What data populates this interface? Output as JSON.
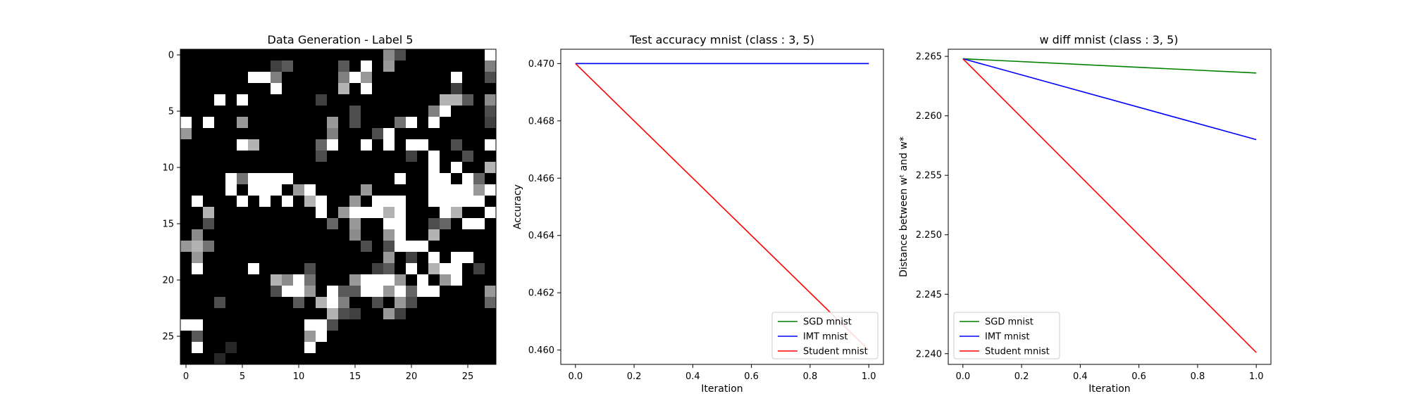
{
  "chart_data": [
    {
      "type": "heatmap",
      "title": "Data Generation - Label 5",
      "colormap": "gray",
      "xticks": [
        0,
        5,
        10,
        15,
        20,
        25
      ],
      "yticks": [
        0,
        5,
        10,
        15,
        20,
        25
      ],
      "shape": [
        28,
        28
      ],
      "white_threshold": 0.72,
      "bright_cells": [
        [
          0,
          18,
          0.55
        ],
        [
          0,
          19,
          0.3
        ],
        [
          0,
          27,
          0.9
        ],
        [
          1,
          8,
          0.25
        ],
        [
          1,
          9,
          0.35
        ],
        [
          1,
          14,
          0.35
        ],
        [
          1,
          16,
          0.9
        ],
        [
          1,
          18,
          0.6
        ],
        [
          1,
          27,
          0.5
        ],
        [
          2,
          6,
          0.9
        ],
        [
          2,
          7,
          0.9
        ],
        [
          2,
          8,
          0.5
        ],
        [
          2,
          14,
          0.5
        ],
        [
          2,
          15,
          0.8
        ],
        [
          2,
          16,
          0.6
        ],
        [
          2,
          24,
          0.9
        ],
        [
          2,
          27,
          0.3
        ],
        [
          3,
          8,
          0.9
        ],
        [
          3,
          14,
          0.7
        ],
        [
          3,
          16,
          0.9
        ],
        [
          3,
          24,
          0.25
        ],
        [
          4,
          3,
          0.9
        ],
        [
          4,
          5,
          0.9
        ],
        [
          4,
          12,
          0.25
        ],
        [
          4,
          23,
          0.7
        ],
        [
          4,
          24,
          0.7
        ],
        [
          4,
          25,
          0.35
        ],
        [
          4,
          27,
          0.55
        ],
        [
          5,
          15,
          0.3
        ],
        [
          5,
          22,
          0.5
        ],
        [
          5,
          23,
          0.9
        ],
        [
          5,
          27,
          0.3
        ],
        [
          6,
          0,
          0.9
        ],
        [
          6,
          2,
          0.9
        ],
        [
          6,
          5,
          0.6
        ],
        [
          6,
          13,
          0.6
        ],
        [
          6,
          15,
          0.3
        ],
        [
          6,
          19,
          0.45
        ],
        [
          6,
          20,
          0.9
        ],
        [
          6,
          22,
          0.9
        ],
        [
          6,
          27,
          0.25
        ],
        [
          7,
          0,
          0.6
        ],
        [
          7,
          13,
          0.5
        ],
        [
          7,
          17,
          0.3
        ],
        [
          7,
          18,
          0.9
        ],
        [
          8,
          5,
          0.9
        ],
        [
          8,
          6,
          0.7
        ],
        [
          8,
          12,
          0.4
        ],
        [
          8,
          13,
          0.9
        ],
        [
          8,
          16,
          0.9
        ],
        [
          8,
          18,
          0.9
        ],
        [
          8,
          20,
          0.9
        ],
        [
          8,
          21,
          0.9
        ],
        [
          8,
          24,
          0.3
        ],
        [
          8,
          27,
          0.9
        ],
        [
          9,
          12,
          0.3
        ],
        [
          9,
          20,
          0.25
        ],
        [
          9,
          22,
          0.9
        ],
        [
          9,
          25,
          0.3
        ],
        [
          10,
          22,
          0.9
        ],
        [
          10,
          24,
          0.9
        ],
        [
          10,
          27,
          0.7
        ],
        [
          11,
          4,
          0.9
        ],
        [
          11,
          5,
          0.45
        ],
        [
          11,
          6,
          0.9
        ],
        [
          11,
          7,
          0.9
        ],
        [
          11,
          8,
          0.9
        ],
        [
          11,
          9,
          0.9
        ],
        [
          11,
          19,
          0.8
        ],
        [
          11,
          22,
          0.9
        ],
        [
          11,
          23,
          0.9
        ],
        [
          11,
          25,
          0.9
        ],
        [
          11,
          26,
          0.4
        ],
        [
          12,
          4,
          0.9
        ],
        [
          12,
          6,
          0.9
        ],
        [
          12,
          7,
          0.9
        ],
        [
          12,
          8,
          0.9
        ],
        [
          12,
          10,
          0.6
        ],
        [
          12,
          11,
          0.9
        ],
        [
          12,
          16,
          0.6
        ],
        [
          12,
          22,
          0.9
        ],
        [
          12,
          23,
          0.9
        ],
        [
          12,
          24,
          0.9
        ],
        [
          12,
          25,
          0.9
        ],
        [
          12,
          26,
          0.6
        ],
        [
          12,
          27,
          0.9
        ],
        [
          13,
          1,
          0.9
        ],
        [
          13,
          5,
          0.9
        ],
        [
          13,
          7,
          0.9
        ],
        [
          13,
          9,
          0.9
        ],
        [
          13,
          11,
          0.7
        ],
        [
          13,
          12,
          0.9
        ],
        [
          13,
          15,
          0.6
        ],
        [
          13,
          17,
          0.9
        ],
        [
          13,
          18,
          0.9
        ],
        [
          13,
          19,
          0.9
        ],
        [
          13,
          22,
          0.9
        ],
        [
          13,
          23,
          0.9
        ],
        [
          13,
          24,
          0.8
        ],
        [
          13,
          25,
          0.9
        ],
        [
          13,
          26,
          0.9
        ],
        [
          14,
          2,
          0.7
        ],
        [
          14,
          12,
          0.9
        ],
        [
          14,
          14,
          0.6
        ],
        [
          14,
          15,
          0.9
        ],
        [
          14,
          16,
          0.9
        ],
        [
          14,
          17,
          0.9
        ],
        [
          14,
          18,
          0.7
        ],
        [
          14,
          19,
          0.75
        ],
        [
          14,
          23,
          0.9
        ],
        [
          14,
          24,
          0.7
        ],
        [
          14,
          27,
          0.9
        ],
        [
          15,
          2,
          0.3
        ],
        [
          15,
          13,
          0.4
        ],
        [
          15,
          15,
          0.6
        ],
        [
          15,
          18,
          0.75
        ],
        [
          15,
          19,
          0.9
        ],
        [
          15,
          22,
          0.3
        ],
        [
          15,
          23,
          0.4
        ],
        [
          15,
          25,
          0.9
        ],
        [
          15,
          26,
          0.9
        ],
        [
          16,
          1,
          0.55
        ],
        [
          16,
          15,
          0.55
        ],
        [
          16,
          18,
          0.6
        ],
        [
          16,
          19,
          0.9
        ],
        [
          16,
          22,
          0.7
        ],
        [
          17,
          0,
          0.6
        ],
        [
          17,
          1,
          0.7
        ],
        [
          17,
          2,
          0.45
        ],
        [
          17,
          16,
          0.3
        ],
        [
          17,
          18,
          0.3
        ],
        [
          17,
          19,
          0.9
        ],
        [
          17,
          20,
          0.9
        ],
        [
          17,
          21,
          0.9
        ],
        [
          18,
          1,
          0.6
        ],
        [
          18,
          18,
          0.6
        ],
        [
          18,
          20,
          0.25
        ],
        [
          18,
          22,
          0.9
        ],
        [
          18,
          24,
          0.9
        ],
        [
          18,
          25,
          0.9
        ],
        [
          19,
          1,
          0.9
        ],
        [
          19,
          6,
          0.9
        ],
        [
          19,
          11,
          0.3
        ],
        [
          19,
          17,
          0.25
        ],
        [
          19,
          18,
          0.35
        ],
        [
          19,
          20,
          0.8
        ],
        [
          19,
          22,
          0.7
        ],
        [
          19,
          23,
          0.8
        ],
        [
          19,
          24,
          0.9
        ],
        [
          19,
          26,
          0.25
        ],
        [
          20,
          8,
          0.7
        ],
        [
          20,
          9,
          0.55
        ],
        [
          20,
          10,
          0.8
        ],
        [
          20,
          11,
          0.45
        ],
        [
          20,
          15,
          0.6
        ],
        [
          20,
          16,
          0.9
        ],
        [
          20,
          17,
          0.9
        ],
        [
          20,
          18,
          0.9
        ],
        [
          20,
          19,
          0.6
        ],
        [
          20,
          21,
          0.8
        ],
        [
          20,
          23,
          0.6
        ],
        [
          20,
          24,
          0.9
        ],
        [
          21,
          8,
          0.3
        ],
        [
          21,
          9,
          0.9
        ],
        [
          21,
          10,
          0.9
        ],
        [
          21,
          11,
          0.6
        ],
        [
          21,
          13,
          0.9
        ],
        [
          21,
          14,
          0.35
        ],
        [
          21,
          15,
          0.35
        ],
        [
          21,
          16,
          0.9
        ],
        [
          21,
          17,
          0.9
        ],
        [
          21,
          18,
          0.6
        ],
        [
          21,
          19,
          0.8
        ],
        [
          21,
          20,
          0.4
        ],
        [
          21,
          21,
          0.9
        ],
        [
          21,
          22,
          0.9
        ],
        [
          21,
          27,
          0.6
        ],
        [
          22,
          3,
          0.3
        ],
        [
          22,
          10,
          0.35
        ],
        [
          22,
          12,
          0.7
        ],
        [
          22,
          13,
          0.9
        ],
        [
          22,
          14,
          0.5
        ],
        [
          22,
          17,
          0.3
        ],
        [
          22,
          19,
          0.6
        ],
        [
          22,
          20,
          0.3
        ],
        [
          22,
          27,
          0.4
        ],
        [
          23,
          13,
          0.7
        ],
        [
          23,
          14,
          0.3
        ],
        [
          23,
          15,
          0.25
        ],
        [
          23,
          18,
          0.6
        ],
        [
          23,
          19,
          0.25
        ],
        [
          24,
          0,
          0.9
        ],
        [
          24,
          1,
          0.9
        ],
        [
          24,
          11,
          0.9
        ],
        [
          24,
          12,
          0.9
        ],
        [
          24,
          13,
          0.3
        ],
        [
          25,
          1,
          0.35
        ],
        [
          25,
          11,
          0.6
        ],
        [
          25,
          12,
          0.9
        ],
        [
          26,
          1,
          0.9
        ],
        [
          26,
          11,
          0.9
        ],
        [
          26,
          4,
          0.15
        ],
        [
          27,
          3,
          0.15
        ]
      ]
    },
    {
      "type": "line",
      "title": "Test accuracy mnist (class : 3, 5)",
      "xlabel": "Iteration",
      "ylabel": "Accuracy",
      "xlim": [
        -0.05,
        1.05
      ],
      "ylim": [
        0.4595,
        0.4705
      ],
      "xticks": [
        0.0,
        0.2,
        0.4,
        0.6,
        0.8,
        1.0
      ],
      "yticks": [
        0.46,
        0.462,
        0.464,
        0.466,
        0.468,
        0.47
      ],
      "xtick_labels": [
        "0.0",
        "0.2",
        "0.4",
        "0.6",
        "0.8",
        "1.0"
      ],
      "ytick_labels": [
        "0.460",
        "0.462",
        "0.464",
        "0.466",
        "0.468",
        "0.470"
      ],
      "legend_position": "lower-right",
      "series": [
        {
          "name": "SGD mnist",
          "color": "#008000",
          "x": [
            0,
            1
          ],
          "y": [
            0.47,
            0.47
          ]
        },
        {
          "name": "IMT mnist",
          "color": "#0000ff",
          "x": [
            0,
            1
          ],
          "y": [
            0.47,
            0.47
          ]
        },
        {
          "name": "Student mnist",
          "color": "#ff0000",
          "x": [
            0,
            1
          ],
          "y": [
            0.47,
            0.46
          ]
        }
      ]
    },
    {
      "type": "line",
      "title": "w diff mnist (class : 3, 5)",
      "xlabel": "Iteration",
      "ylabel": "Distance between wᵗ and w*",
      "xlim": [
        -0.05,
        1.05
      ],
      "ylim": [
        2.2391,
        2.2656
      ],
      "xticks": [
        0.0,
        0.2,
        0.4,
        0.6,
        0.8,
        1.0
      ],
      "yticks": [
        2.24,
        2.245,
        2.25,
        2.255,
        2.26,
        2.265
      ],
      "xtick_labels": [
        "0.0",
        "0.2",
        "0.4",
        "0.6",
        "0.8",
        "1.0"
      ],
      "ytick_labels": [
        "2.240",
        "2.245",
        "2.250",
        "2.255",
        "2.260",
        "2.265"
      ],
      "legend_position": "lower-left",
      "series": [
        {
          "name": "SGD mnist",
          "color": "#008000",
          "x": [
            0,
            1
          ],
          "y": [
            2.2648,
            2.2636
          ]
        },
        {
          "name": "IMT mnist",
          "color": "#0000ff",
          "x": [
            0,
            1
          ],
          "y": [
            2.2648,
            2.258
          ]
        },
        {
          "name": "Student mnist",
          "color": "#ff0000",
          "x": [
            0,
            1
          ],
          "y": [
            2.2648,
            2.2401
          ]
        }
      ]
    }
  ]
}
